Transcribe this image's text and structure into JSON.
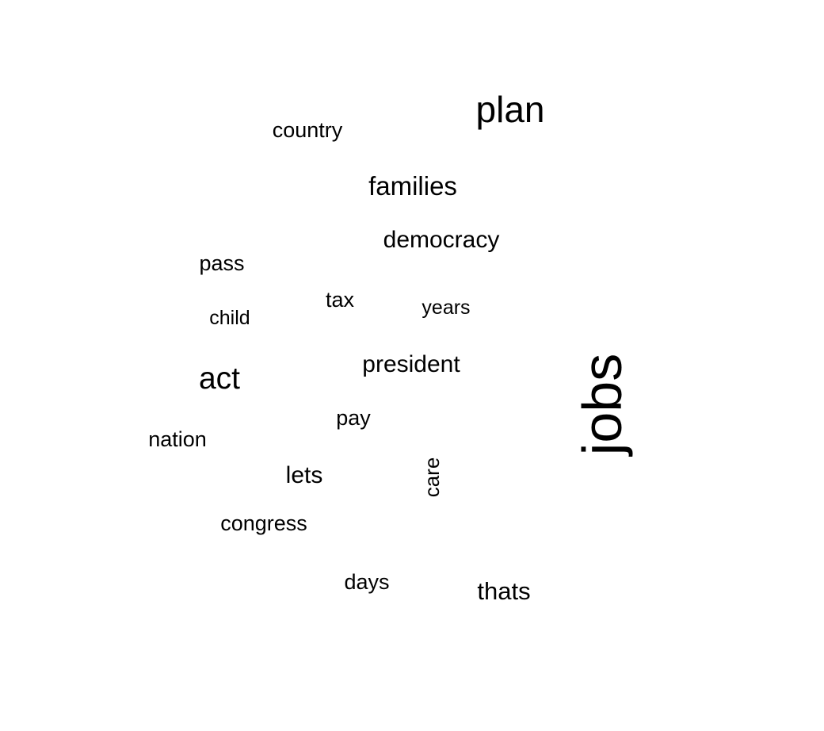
{
  "words": [
    {
      "text": "plan"
    },
    {
      "text": "country"
    },
    {
      "text": "families"
    },
    {
      "text": "democracy"
    },
    {
      "text": "pass"
    },
    {
      "text": "tax"
    },
    {
      "text": "years"
    },
    {
      "text": "child"
    },
    {
      "text": "president"
    },
    {
      "text": "act"
    },
    {
      "text": "jobs"
    },
    {
      "text": "pay"
    },
    {
      "text": "nation"
    },
    {
      "text": "lets"
    },
    {
      "text": "care"
    },
    {
      "text": "congress"
    },
    {
      "text": "days"
    },
    {
      "text": "thats"
    }
  ],
  "text_color": "#000000",
  "background_color": "#ffffff"
}
